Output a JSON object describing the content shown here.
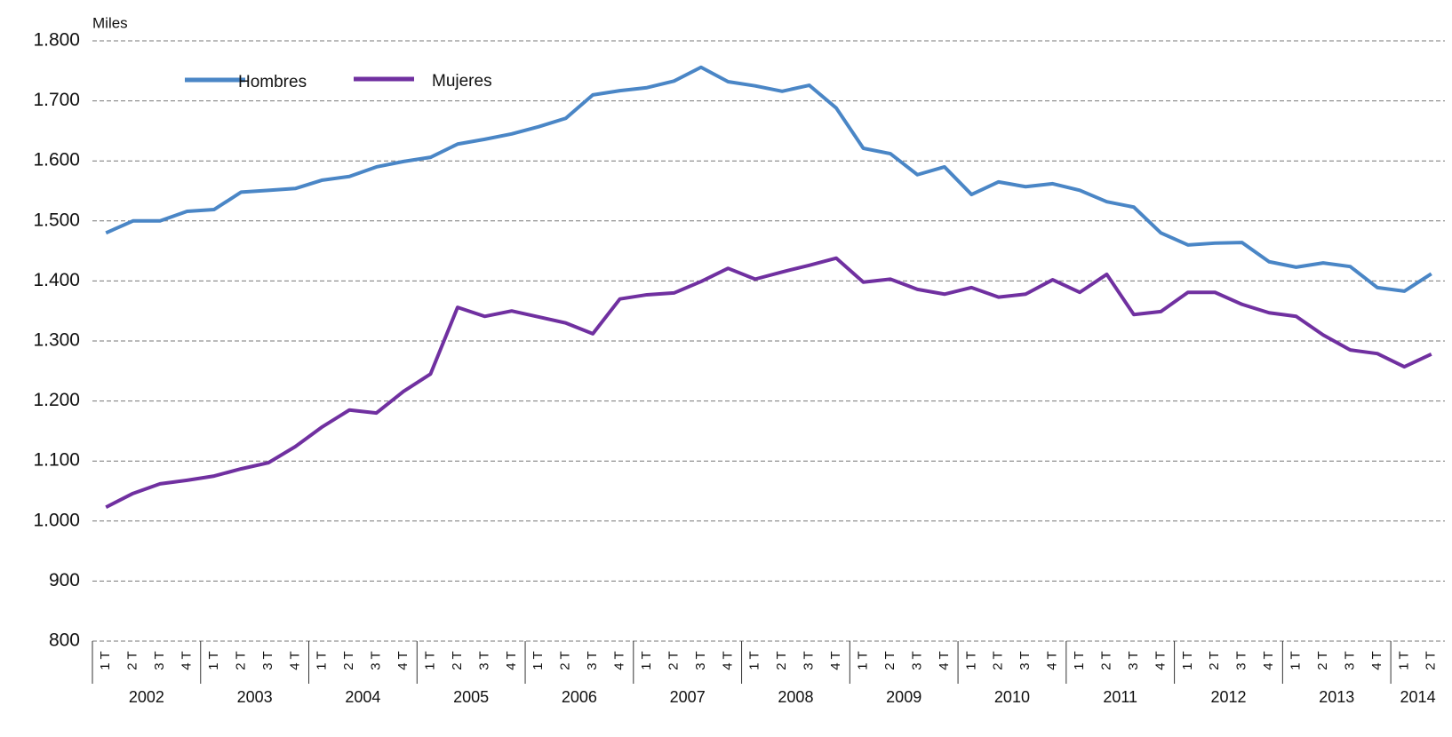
{
  "chart_data": {
    "type": "line",
    "y_label": "Miles",
    "legend": "top-left",
    "grid": true,
    "ylim": [
      800,
      1800
    ],
    "yticks": [
      800,
      900,
      {
        "value": 1000,
        "label": "1.000"
      },
      {
        "value": 1100,
        "label": "1.100"
      },
      {
        "value": 1200,
        "label": "1.200"
      },
      {
        "value": 1300,
        "label": "1.300"
      },
      {
        "value": 1400,
        "label": "1.400"
      },
      {
        "value": 1500,
        "label": "1.500"
      },
      {
        "value": 1600,
        "label": "1.600"
      },
      {
        "value": 1700,
        "label": "1.700"
      },
      {
        "value": 1800,
        "label": "1.800"
      }
    ],
    "year_groups": [
      "2002",
      "2003",
      "2004",
      "2005",
      "2006",
      "2007",
      "2008",
      "2009",
      "2010",
      "2011",
      "2012",
      "2013",
      "2014"
    ],
    "categories": [
      "1 T",
      "2 T",
      "3 T",
      "4 T",
      "1 T",
      "2 T",
      "3 T",
      "4 T",
      "1 T",
      "2 T",
      "3 T",
      "4 T",
      "1 T",
      "2 T",
      "3 T",
      "4 T",
      "1 T",
      "2 T",
      "3 T",
      "4 T",
      "1 T",
      "2 T",
      "3 T",
      "4 T",
      "1 T",
      "2 T",
      "3 T",
      "4 T",
      "1 T",
      "2 T",
      "3 T",
      "4 T",
      "1 T",
      "2 T",
      "3 T",
      "4 T",
      "1 T",
      "2 T",
      "3 T",
      "4 T",
      "1 T",
      "2 T",
      "3 T",
      "4 T",
      "1 T",
      "2 T",
      "3 T",
      "4 T",
      "1 T",
      "2 T"
    ],
    "series": [
      {
        "name": "Hombres",
        "color": "#4a86c6",
        "values": [
          1480,
          1500,
          1500,
          1516,
          1519,
          1548,
          1551,
          1554,
          1568,
          1574,
          1590,
          1599,
          1606,
          1628,
          1636,
          1645,
          1657,
          1671,
          1710,
          1717,
          1722,
          1733,
          1756,
          1732,
          1725,
          1716,
          1726,
          1688,
          1621,
          1612,
          1577,
          1590,
          1544,
          1565,
          1557,
          1562,
          1551,
          1532,
          1523,
          1480,
          1460,
          1463,
          1464,
          1432,
          1423,
          1430,
          1424,
          1389,
          1383,
          1412
        ]
      },
      {
        "name": "Mujeres",
        "color": "#7030a0",
        "values": [
          1023,
          1046,
          1062,
          1068,
          1075,
          1087,
          1097,
          1124,
          1157,
          1185,
          1180,
          1216,
          1245,
          1356,
          1341,
          1350,
          1340,
          1330,
          1312,
          1370,
          1377,
          1380,
          1399,
          1421,
          1403,
          1415,
          1426,
          1438,
          1398,
          1403,
          1386,
          1378,
          1389,
          1373,
          1378,
          1402,
          1381,
          1411,
          1344,
          1349,
          1381,
          1381,
          1361,
          1347,
          1341,
          1310,
          1285,
          1279,
          1257,
          1278
        ]
      }
    ]
  }
}
